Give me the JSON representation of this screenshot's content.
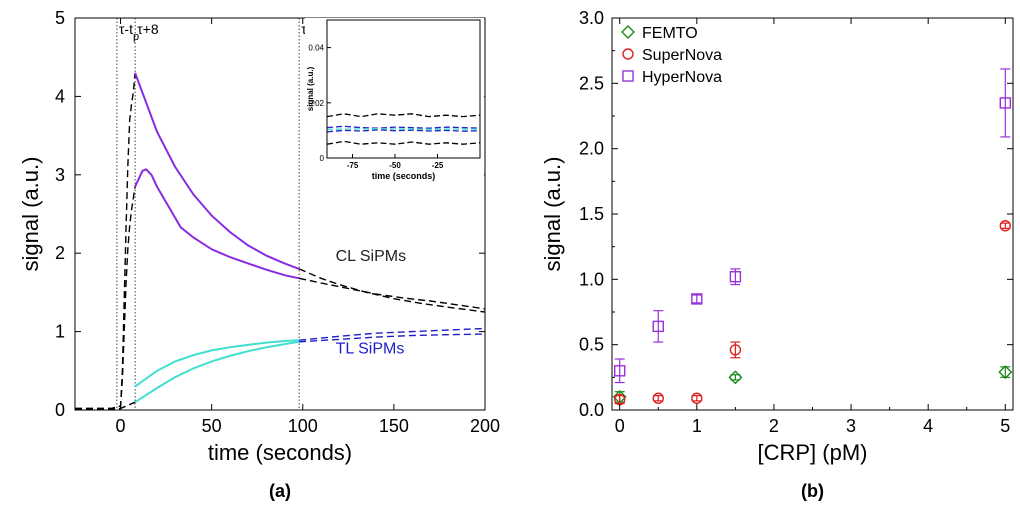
{
  "chart_data": [
    {
      "type": "line",
      "panel_label": "(a)",
      "xlabel": "time (seconds)",
      "ylabel": "signal (a.u.)",
      "xlim": [
        -25,
        200
      ],
      "ylim": [
        0,
        5
      ],
      "xticks": [
        0,
        50,
        100,
        150,
        200
      ],
      "yticks": [
        0,
        1,
        2,
        3,
        4,
        5
      ],
      "grid": false,
      "vlines": [
        {
          "x": -2,
          "label": "τ-t",
          "subscript": "p"
        },
        {
          "x": 8,
          "label": "τ+8",
          "subscript": ""
        },
        {
          "x": 98,
          "label": "τ+98",
          "subscript": ""
        }
      ],
      "annotations": [
        {
          "text": "CL SiPMs",
          "x": 118,
          "y": 1.9,
          "color": "#222222"
        },
        {
          "text": "TL SiPMs",
          "x": 118,
          "y": 0.72,
          "color": "#1f1fc8"
        }
      ],
      "series": [
        {
          "style": "dashed",
          "color": "#000000",
          "points": [
            [
              -25,
              0.02
            ],
            [
              -5,
              0.02
            ],
            [
              0,
              0.05
            ],
            [
              1,
              0.5
            ],
            [
              2,
              1.4
            ],
            [
              3,
              2.3
            ],
            [
              4,
              3.1
            ],
            [
              5,
              3.7
            ],
            [
              6,
              3.9
            ],
            [
              7,
              4.05
            ],
            [
              8,
              4.3
            ]
          ]
        },
        {
          "style": "dashed",
          "color": "#000000",
          "points": [
            [
              -25,
              0.02
            ],
            [
              -5,
              0.02
            ],
            [
              0,
              0.05
            ],
            [
              1,
              0.4
            ],
            [
              2,
              1.0
            ],
            [
              3,
              1.6
            ],
            [
              4,
              2.05
            ],
            [
              5,
              2.35
            ],
            [
              6,
              2.55
            ],
            [
              7,
              2.7
            ],
            [
              8,
              2.85
            ]
          ]
        },
        {
          "style": "solid",
          "color": "#8a2be2",
          "points": [
            [
              8,
              4.3
            ],
            [
              12,
              4.05
            ],
            [
              20,
              3.55
            ],
            [
              30,
              3.1
            ],
            [
              40,
              2.75
            ],
            [
              50,
              2.48
            ],
            [
              60,
              2.27
            ],
            [
              70,
              2.1
            ],
            [
              80,
              1.97
            ],
            [
              90,
              1.87
            ],
            [
              98,
              1.8
            ]
          ]
        },
        {
          "style": "solid",
          "color": "#8a2be2",
          "points": [
            [
              8,
              2.85
            ],
            [
              10,
              2.95
            ],
            [
              12,
              3.05
            ],
            [
              14,
              3.07
            ],
            [
              17,
              3.0
            ],
            [
              20,
              2.85
            ],
            [
              25,
              2.65
            ],
            [
              30,
              2.45
            ],
            [
              33,
              2.33
            ],
            [
              40,
              2.2
            ],
            [
              50,
              2.05
            ],
            [
              60,
              1.95
            ],
            [
              70,
              1.87
            ],
            [
              80,
              1.79
            ],
            [
              90,
              1.72
            ],
            [
              98,
              1.68
            ]
          ]
        },
        {
          "style": "dashed",
          "color": "#000000",
          "points": [
            [
              98,
              1.8
            ],
            [
              110,
              1.68
            ],
            [
              120,
              1.6
            ],
            [
              135,
              1.5
            ],
            [
              150,
              1.42
            ],
            [
              165,
              1.36
            ],
            [
              180,
              1.31
            ],
            [
              200,
              1.25
            ]
          ]
        },
        {
          "style": "dashed",
          "color": "#000000",
          "points": [
            [
              98,
              1.68
            ],
            [
              110,
              1.62
            ],
            [
              125,
              1.55
            ],
            [
              140,
              1.48
            ],
            [
              155,
              1.43
            ],
            [
              170,
              1.39
            ],
            [
              185,
              1.34
            ],
            [
              200,
              1.29
            ]
          ]
        },
        {
          "style": "dashed",
          "color": "#000000",
          "points": [
            [
              -25,
              0.01
            ],
            [
              -2,
              0.01
            ],
            [
              0,
              0.02
            ],
            [
              4,
              0.06
            ],
            [
              8,
              0.1
            ]
          ]
        },
        {
          "style": "solid",
          "color": "#40e0d0",
          "points": [
            [
              8,
              0.3
            ],
            [
              20,
              0.5
            ],
            [
              30,
              0.62
            ],
            [
              40,
              0.7
            ],
            [
              50,
              0.76
            ],
            [
              60,
              0.8
            ],
            [
              70,
              0.83
            ],
            [
              80,
              0.86
            ],
            [
              90,
              0.88
            ],
            [
              98,
              0.89
            ]
          ]
        },
        {
          "style": "solid",
          "color": "#40e0d0",
          "points": [
            [
              8,
              0.1
            ],
            [
              20,
              0.28
            ],
            [
              30,
              0.42
            ],
            [
              40,
              0.53
            ],
            [
              50,
              0.62
            ],
            [
              60,
              0.69
            ],
            [
              70,
              0.75
            ],
            [
              80,
              0.8
            ],
            [
              90,
              0.84
            ],
            [
              98,
              0.87
            ]
          ]
        },
        {
          "style": "dashed",
          "color": "#1f1fc8",
          "points": [
            [
              98,
              0.87
            ],
            [
              120,
              0.9
            ],
            [
              140,
              0.93
            ],
            [
              160,
              0.95
            ],
            [
              180,
              0.96
            ],
            [
              200,
              0.97
            ]
          ]
        },
        {
          "style": "dashed",
          "color": "#1f1fc8",
          "points": [
            [
              98,
              0.89
            ],
            [
              120,
              0.94
            ],
            [
              140,
              0.98
            ],
            [
              160,
              1.0
            ],
            [
              180,
              1.02
            ],
            [
              200,
              1.04
            ]
          ]
        }
      ],
      "inset": {
        "xlabel": "time (seconds)",
        "ylabel": "signal (a.u.)",
        "xlim": [
          -90,
          0
        ],
        "ylim": [
          0,
          0.05
        ],
        "xticks": [
          -75,
          -50,
          -25
        ],
        "yticks": [
          0,
          0.02,
          0.04
        ],
        "series": [
          {
            "style": "dashed",
            "color": "#000000",
            "points": [
              [
                -90,
                0.015
              ],
              [
                -80,
                0.016
              ],
              [
                -70,
                0.015
              ],
              [
                -60,
                0.016
              ],
              [
                -50,
                0.0155
              ],
              [
                -40,
                0.016
              ],
              [
                -30,
                0.015
              ],
              [
                -20,
                0.0155
              ],
              [
                -10,
                0.015
              ],
              [
                0,
                0.0155
              ]
            ]
          },
          {
            "style": "dashed",
            "color": "#000000",
            "points": [
              [
                -90,
                0.005
              ],
              [
                -80,
                0.006
              ],
              [
                -70,
                0.005
              ],
              [
                -60,
                0.0055
              ],
              [
                -50,
                0.005
              ],
              [
                -40,
                0.0058
              ],
              [
                -30,
                0.005
              ],
              [
                -20,
                0.0055
              ],
              [
                -10,
                0.005
              ],
              [
                0,
                0.0055
              ]
            ]
          },
          {
            "style": "dashed",
            "color": "#1f1fc8",
            "points": [
              [
                -90,
                0.011
              ],
              [
                -80,
                0.0115
              ],
              [
                -70,
                0.011
              ],
              [
                -60,
                0.0108
              ],
              [
                -50,
                0.0112
              ],
              [
                -40,
                0.011
              ],
              [
                -30,
                0.0108
              ],
              [
                -20,
                0.0112
              ],
              [
                -10,
                0.011
              ],
              [
                0,
                0.0108
              ]
            ]
          },
          {
            "style": "dashed",
            "color": "#1f1fc8",
            "points": [
              [
                -90,
                0.0095
              ],
              [
                -80,
                0.01
              ],
              [
                -70,
                0.0098
              ],
              [
                -60,
                0.0102
              ],
              [
                -50,
                0.0099
              ],
              [
                -40,
                0.0101
              ],
              [
                -30,
                0.0098
              ],
              [
                -20,
                0.01
              ],
              [
                -10,
                0.0097
              ],
              [
                0,
                0.0099
              ]
            ]
          },
          {
            "style": "dashed",
            "color": "#40e0d0",
            "points": [
              [
                -90,
                0.0104
              ],
              [
                -60,
                0.0106
              ],
              [
                -30,
                0.0104
              ],
              [
                0,
                0.0105
              ]
            ]
          }
        ]
      }
    },
    {
      "type": "scatter",
      "panel_label": "(b)",
      "xlabel": "[CRP] (pM)",
      "ylabel": "signal (a.u.)",
      "xlim": [
        -0.1,
        5.1
      ],
      "ylim": [
        0,
        3.0
      ],
      "xticks": [
        0,
        1,
        2,
        3,
        4,
        5
      ],
      "yticks": [
        "0.0",
        "0.5",
        "1.0",
        "1.5",
        "2.0",
        "2.5",
        "3.0"
      ],
      "legend_position": "top-left",
      "grid": false,
      "series": [
        {
          "name": "FEMTO",
          "marker": "diamond",
          "color": "#1a8a1a",
          "x": [
            0,
            1.5,
            5
          ],
          "y": [
            0.1,
            0.25,
            0.29
          ],
          "err": [
            0.04,
            0.02,
            0.04
          ]
        },
        {
          "name": "SuperNova",
          "marker": "circle",
          "color": "#e02020",
          "x": [
            0,
            0.5,
            1,
            1.5,
            5
          ],
          "y": [
            0.08,
            0.09,
            0.09,
            0.46,
            1.41
          ],
          "err": [
            0.03,
            0.02,
            0.02,
            0.06,
            0.02
          ]
        },
        {
          "name": "HyperNova",
          "marker": "square",
          "color": "#9a30d8",
          "x": [
            0,
            0.5,
            1,
            1.5,
            5
          ],
          "y": [
            0.3,
            0.64,
            0.85,
            1.02,
            2.35
          ],
          "err": [
            0.09,
            0.12,
            0.03,
            0.06,
            0.26
          ]
        }
      ]
    }
  ]
}
